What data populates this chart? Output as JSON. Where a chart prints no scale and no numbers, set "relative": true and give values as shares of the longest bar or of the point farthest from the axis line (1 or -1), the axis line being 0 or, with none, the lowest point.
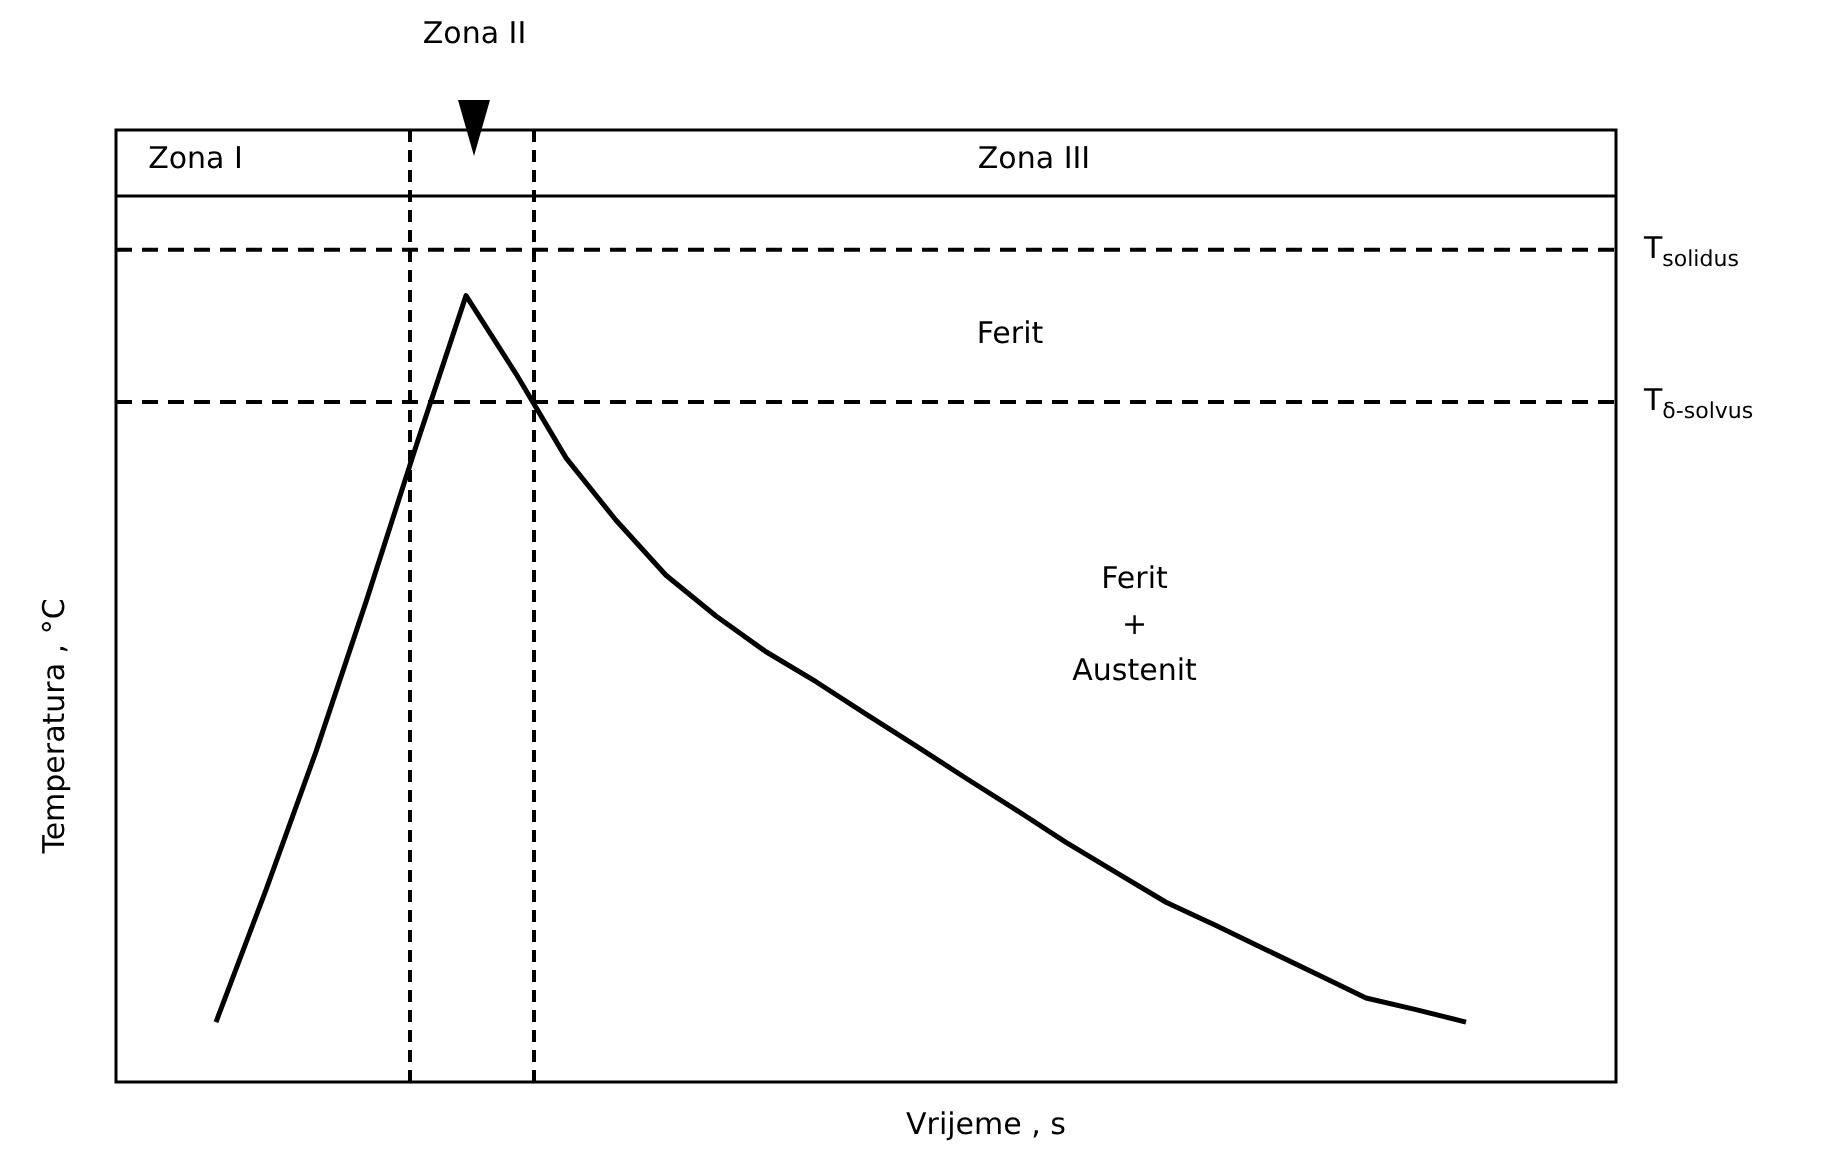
{
  "chart_data": {
    "type": "line",
    "relative": true,
    "xlabel": "Vrijeme , s",
    "ylabel": "Temperatura , °C",
    "categories": [
      null,
      null,
      null,
      null,
      null,
      null,
      null,
      null,
      null,
      null,
      null,
      null,
      null,
      null,
      null,
      null,
      null,
      null,
      null,
      null,
      null,
      null,
      null,
      null,
      null,
      null,
      null,
      null,
      null,
      null,
      null
    ],
    "series": [
      {
        "color": "#000000",
        "values": [
          null,
          null,
          0.072,
          0.231,
          0.397,
          0.577,
          0.764,
          0.945,
          0.851,
          0.75,
          0.675,
          0.609,
          0.56,
          0.517,
          0.481,
          0.442,
          0.404,
          0.365,
          0.327,
          0.288,
          0.252,
          0.216,
          0.188,
          0.159,
          0.13,
          0.101,
          0.087,
          0.072,
          null,
          null,
          null
        ]
      },
      {
        "name": "T$_{solidus}$",
        "color": "#000000",
        "line_style": "dashed",
        "values": [
          1,
          1,
          1,
          1,
          1,
          1,
          1,
          1,
          1,
          1,
          1,
          1,
          1,
          1,
          1,
          1,
          1,
          1,
          1,
          1,
          1,
          1,
          1,
          1,
          1,
          1,
          1,
          1,
          1,
          1,
          1
        ]
      },
      {
        "name": "T$_{δ-solvus}$",
        "color": "#000000",
        "line_style": "dashed",
        "values": [
          0.817,
          0.817,
          0.817,
          0.817,
          0.817,
          0.817,
          0.817,
          0.817,
          0.817,
          0.817,
          0.817,
          0.817,
          0.817,
          0.817,
          0.817,
          0.817,
          0.817,
          0.817,
          0.817,
          0.817,
          0.817,
          0.817,
          0.817,
          0.817,
          0.817,
          0.817,
          0.817,
          0.817,
          0.817,
          0.817,
          0.817
        ]
      }
    ],
    "legend": false,
    "marker": "none",
    "line_style": "solid",
    "annotations": [
      "Zona I",
      "Zona II",
      "Zona III",
      "Ferit",
      "Ferit\n+\nAustenit"
    ]
  }
}
